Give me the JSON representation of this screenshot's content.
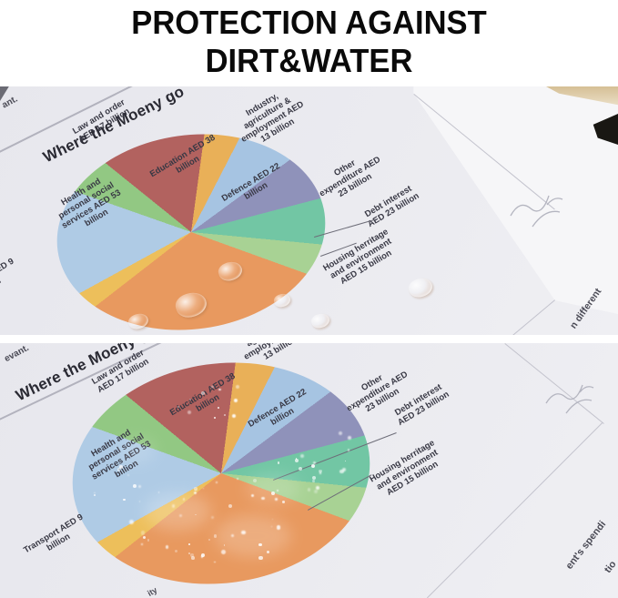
{
  "banner": {
    "line1": "PROTECTION AGAINST",
    "line2": "DIRT&WATER"
  },
  "chart_data": {
    "type": "pie",
    "title": "Where the Moeny go",
    "unit": "AED billion",
    "categories": [
      "Education",
      "Industry, agriculture & employment",
      "Defence",
      "Other expenditure",
      "Debt interest",
      "Housing herritage and environment",
      "Social security",
      "Transport",
      "Health and personal social services",
      "Law and order"
    ],
    "values": [
      38,
      13,
      22,
      23,
      23,
      15,
      88,
      9,
      53,
      17
    ],
    "colors": [
      "#b2625f",
      "#e9b058",
      "#a6c4e2",
      "#8f92ba",
      "#72c6a4",
      "#a8d294",
      "#e8995f",
      "#edbf5b",
      "#afcbe5",
      "#92c883"
    ],
    "start_angle_deg": -34,
    "legend_position": "none",
    "note": "Largest orange slice (~88, est. from slice angle) has its label cut off by the photo edge; chart printed twice — top copy shown with water droplets, bottom copy with dirt/powder.",
    "labels": {
      "education": "Education AED 38\nbillion",
      "industry": "Industry,\nagriculture &\nemployment AED\n13 billion",
      "defence": "Defence AED 22\nbillion",
      "other": "Other\nexpenditure AED\n23 billion",
      "debt": "Debt interest\nAED 23 billion",
      "housing": "Housing herritage\nand environment\nAED 15 billion",
      "transport": "Transport AED 9\nbillion",
      "health": "Health and\npersonal social\nservices AED 53\nbillion",
      "law": "Law and order\nAED 17 billion"
    }
  },
  "page_fragments": {
    "photo1_left": "ant.",
    "photo1_right": "n different",
    "photo2_left": "evant.",
    "photo2_bottom": "ity",
    "photo2_bottom_right_1": "ent's spendi",
    "photo2_bottom_right_2": "tio"
  }
}
